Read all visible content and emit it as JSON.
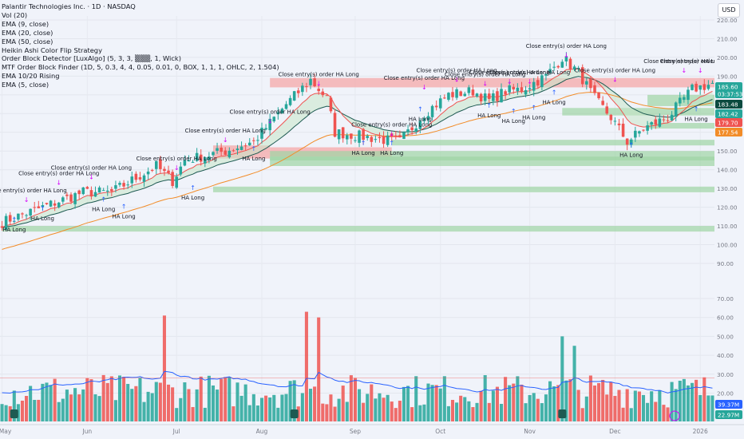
{
  "legend": [
    "Palantir Technologies Inc. · 1D · NASDAQ",
    "Vol (20)",
    "EMA (9, close)",
    "EMA (20, close)",
    "EMA (50, close)",
    "Heikin Ashi Color Flip Strategy",
    "Order Block Detector [LuxAlgo] (5, 3, 3, ▒▒▒, 1, Wick)",
    "MTF Order Block Finder (1D, 5, 0.3, 4, 4, 0.05, 0.01, 0, BOX, 1, 1, 1, OHLC, 2, 1.504)",
    "EMA 10/20 Rising",
    "EMA (5, close)"
  ],
  "currency_label": "USD",
  "colors": {
    "background": "#f0f3fa",
    "up": "#26a69a",
    "down": "#ef5350",
    "ema9": "#ef5350",
    "ema20": "#1e5a52",
    "ema50": "#f28c28",
    "vol_ma": "#2962ff",
    "signal_up": "#2962ff",
    "signal_exit": "#d500f9",
    "zone_red": "#f5a3a3",
    "zone_green": "#9ed4a4"
  },
  "chart_data": {
    "type": "candlestick",
    "price_axis": {
      "range": [
        90,
        220
      ],
      "ticks": [
        "220.00",
        "210.00",
        "200.00",
        "190.00",
        "180.00",
        "170.00",
        "160.00",
        "150.00",
        "140.00",
        "130.00",
        "120.00",
        "110.00",
        "100.00",
        "90.00"
      ],
      "volume_ticks": [
        "70.00",
        "60.00",
        "50.00",
        "40.00",
        "30.00",
        "20.00"
      ]
    },
    "time_axis": [
      "May",
      "Jun",
      "Jul",
      "Aug",
      "Sep",
      "Oct",
      "Nov",
      "Dec",
      "2026"
    ],
    "price_anchors": [
      {
        "day": 0,
        "price": 112
      },
      {
        "day": 10,
        "price": 120
      },
      {
        "day": 20,
        "price": 128
      },
      {
        "day": 27,
        "price": 128
      },
      {
        "day": 38,
        "price": 142
      },
      {
        "day": 42,
        "price": 134
      },
      {
        "day": 45,
        "price": 145
      },
      {
        "day": 55,
        "price": 150
      },
      {
        "day": 62,
        "price": 155
      },
      {
        "day": 70,
        "price": 175
      },
      {
        "day": 76,
        "price": 188
      },
      {
        "day": 80,
        "price": 178
      },
      {
        "day": 82,
        "price": 160
      },
      {
        "day": 88,
        "price": 158
      },
      {
        "day": 94,
        "price": 156
      },
      {
        "day": 98,
        "price": 155
      },
      {
        "day": 104,
        "price": 170
      },
      {
        "day": 110,
        "price": 180
      },
      {
        "day": 116,
        "price": 182
      },
      {
        "day": 120,
        "price": 177
      },
      {
        "day": 124,
        "price": 182
      },
      {
        "day": 128,
        "price": 183
      },
      {
        "day": 134,
        "price": 190
      },
      {
        "day": 138,
        "price": 200
      },
      {
        "day": 142,
        "price": 192
      },
      {
        "day": 146,
        "price": 178
      },
      {
        "day": 150,
        "price": 168
      },
      {
        "day": 154,
        "price": 155
      },
      {
        "day": 158,
        "price": 162
      },
      {
        "day": 164,
        "price": 168
      },
      {
        "day": 170,
        "price": 183
      },
      {
        "day": 175,
        "price": 186
      }
    ],
    "volume_peaks": [
      {
        "day": 40,
        "value": 61
      },
      {
        "day": 75,
        "value": 63
      },
      {
        "day": 78,
        "value": 60
      },
      {
        "day": 138,
        "value": 50
      },
      {
        "day": 141,
        "value": 45
      }
    ],
    "price_labels": [
      {
        "value": "185.60",
        "sub": "03:37:53",
        "color": "#26a69a"
      },
      {
        "value": "183.48",
        "color": "#0b4a3f"
      },
      {
        "value": "182.42",
        "color": "#26a69a"
      },
      {
        "value": "179.70",
        "color": "#ef5350"
      },
      {
        "value": "177.54",
        "color": "#f28c28"
      }
    ],
    "volume_labels": [
      {
        "value": "39.37M",
        "color": "#2962ff"
      },
      {
        "value": "22.97M",
        "color": "#26a69a"
      }
    ],
    "zones": [
      {
        "kind": "supply",
        "top": 189,
        "bottom": 184,
        "from": "Aug",
        "to": "end"
      },
      {
        "kind": "supply",
        "top": 153,
        "bottom": 146,
        "from": "Jul",
        "to": "Aug"
      },
      {
        "kind": "supply",
        "top": 152,
        "bottom": 147,
        "from": "Aug",
        "to": "Sep"
      },
      {
        "kind": "demand",
        "top": 180,
        "bottom": 174,
        "from": "Dec",
        "to": "end"
      },
      {
        "kind": "demand",
        "top": 173,
        "bottom": 169,
        "from": "Nov",
        "to": "end"
      },
      {
        "kind": "demand",
        "top": 165,
        "bottom": 162,
        "from": "Dec",
        "to": "end"
      },
      {
        "kind": "demand",
        "top": 156,
        "bottom": 153,
        "from": "Sep",
        "to": "end"
      },
      {
        "kind": "demand",
        "top": 150,
        "bottom": 145,
        "from": "Aug",
        "to": "end"
      },
      {
        "kind": "demand",
        "top": 147,
        "bottom": 142,
        "from": "Aug",
        "to": "end"
      },
      {
        "kind": "demand",
        "top": 131,
        "bottom": 128,
        "from": "Jul",
        "to": "end"
      },
      {
        "kind": "demand",
        "top": 110,
        "bottom": 107,
        "from": "May",
        "to": "end"
      }
    ],
    "signals": [
      {
        "text": "Close entry(s) order HA Long",
        "kind": "exit",
        "day": 6,
        "price": 128
      },
      {
        "text": "HA Long",
        "kind": "entry",
        "day": 3,
        "price": 107
      },
      {
        "text": "Close entry(s) order HA Long",
        "kind": "exit",
        "day": 14,
        "price": 137
      },
      {
        "text": "HA Long",
        "kind": "entry",
        "day": 10,
        "price": 113
      },
      {
        "text": "Close entry(s) order HA Long",
        "kind": "exit",
        "day": 22,
        "price": 140
      },
      {
        "text": "HA Long",
        "kind": "entry",
        "day": 25,
        "price": 118
      },
      {
        "text": "HA Long",
        "kind": "entry",
        "day": 30,
        "price": 114
      },
      {
        "text": "Close entry(s) order HA Long",
        "kind": "exit",
        "day": 43,
        "price": 145
      },
      {
        "text": "HA Long",
        "kind": "entry",
        "day": 47,
        "price": 124
      },
      {
        "text": "Close entry(s) order HA Long",
        "kind": "exit",
        "day": 55,
        "price": 160
      },
      {
        "text": "HA Long",
        "kind": "entry",
        "day": 62,
        "price": 145
      },
      {
        "text": "Close entry(s) order HA Long",
        "kind": "exit",
        "day": 66,
        "price": 170
      },
      {
        "text": "Close entry(s) order HA Long",
        "kind": "exit",
        "day": 78,
        "price": 190
      },
      {
        "text": "HA Long",
        "kind": "entry",
        "day": 89,
        "price": 148
      },
      {
        "text": "Close entry(s) order HA Long",
        "kind": "exit",
        "day": 96,
        "price": 163
      },
      {
        "text": "HA Long",
        "kind": "entry",
        "day": 96,
        "price": 148
      },
      {
        "text": "Close entry(s) order HA Long",
        "kind": "exit",
        "day": 104,
        "price": 188
      },
      {
        "text": "HA Long",
        "kind": "entry",
        "day": 103,
        "price": 166
      },
      {
        "text": "Close entry(s) order HA Long",
        "kind": "exit",
        "day": 112,
        "price": 192
      },
      {
        "text": "HA Long",
        "kind": "entry",
        "day": 120,
        "price": 168
      },
      {
        "text": "Close entry(s) order HA Long",
        "kind": "exit",
        "day": 119,
        "price": 190
      },
      {
        "text": "Close entry(s) order HA Long",
        "kind": "exit",
        "day": 125,
        "price": 191
      },
      {
        "text": "HA Long",
        "kind": "entry",
        "day": 126,
        "price": 165
      },
      {
        "text": "Close entry(s) order HA Long",
        "kind": "exit",
        "day": 130,
        "price": 191
      },
      {
        "text": "HA Long",
        "kind": "entry",
        "day": 131,
        "price": 167
      },
      {
        "text": "HA Long",
        "kind": "entry",
        "day": 136,
        "price": 175
      },
      {
        "text": "Close entry(s) order HA Long",
        "kind": "exit",
        "day": 139,
        "price": 205
      },
      {
        "text": "Close entry(s) order HA Long",
        "kind": "exit",
        "day": 151,
        "price": 192
      },
      {
        "text": "HA Long",
        "kind": "entry",
        "day": 155,
        "price": 147
      },
      {
        "text": "Close entry(s) order HA Long",
        "kind": "exit",
        "day": 168,
        "price": 197
      },
      {
        "text": "Close entry(s) order HA Long",
        "kind": "exit",
        "day": 172,
        "price": 197
      },
      {
        "text": "HA Long",
        "kind": "entry",
        "day": 171,
        "price": 166
      }
    ]
  }
}
